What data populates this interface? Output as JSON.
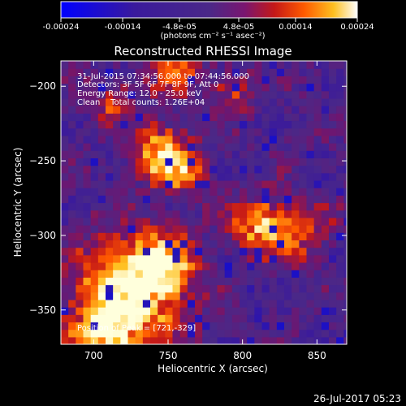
{
  "colorbar": {
    "ticks": [
      "-0.00024",
      "-0.00014",
      "-4.8e-05",
      "4.8e-05",
      "0.00014",
      "0.00024"
    ],
    "tick_values": [
      -0.00024,
      -0.00014,
      -4.8e-05,
      4.8e-05,
      0.00014,
      0.00024
    ],
    "range": [
      -0.00024,
      0.00024
    ],
    "unit_label": "(photons cm⁻² s⁻¹ asec⁻²)"
  },
  "header": {
    "title": "Reconstructed RHESSI Image"
  },
  "annotations": {
    "time_range": "31-Jul-2015 07:34:56.000 to 07:44:56.000",
    "detectors": "Detectors: 3F 5F 6F 7F 8F 9F, Att 0",
    "energy": "Energy Range: 12.0 - 25.0 keV",
    "clean": "Clean    Total counts: 1.26E+04",
    "peak": "Position of Peak = [721,-329]"
  },
  "footer": {
    "timestamp": "26-Jul-2017 05:23"
  },
  "colors": {
    "background": "#000000",
    "text": "#ffffff",
    "cmap_neg": [
      "#0000ff",
      "#3a1a9c",
      "#4a2888"
    ],
    "cmap_pos": [
      "#4a2888",
      "#7a1670",
      "#c41818",
      "#ff5a00",
      "#ffc020",
      "#ffffd0",
      "#ffffff"
    ]
  },
  "chart_data": {
    "type": "heatmap",
    "title": "Reconstructed RHESSI Image",
    "xlabel": "Heliocentric X (arcsec)",
    "ylabel": "Heliocentric Y (arcsec)",
    "xlim": [
      678,
      870
    ],
    "ylim": [
      -373,
      -183
    ],
    "x_ticks": [
      700,
      750,
      800,
      850
    ],
    "y_ticks": [
      -200,
      -250,
      -300,
      -350
    ],
    "x_tick_labels": [
      "700",
      "750",
      "800",
      "850"
    ],
    "y_tick_labels": [
      "−200",
      "−250",
      "−300",
      "−350"
    ],
    "peak": [
      721,
      -329
    ],
    "bright_sources": [
      {
        "x": 721,
        "y": -340,
        "level": 1.0,
        "width": 24
      },
      {
        "x": 742,
        "y": -322,
        "level": 0.75,
        "width": 14
      },
      {
        "x": 706,
        "y": -372,
        "level": 0.7,
        "width": 16
      },
      {
        "x": 742,
        "y": -247,
        "level": 0.8,
        "width": 12
      },
      {
        "x": 757,
        "y": -258,
        "level": 0.55,
        "width": 11
      },
      {
        "x": 808,
        "y": -295,
        "level": 0.75,
        "width": 12
      },
      {
        "x": 835,
        "y": -300,
        "level": 0.5,
        "width": 14
      },
      {
        "x": 750,
        "y": -188,
        "level": 0.6,
        "width": 12
      },
      {
        "x": 712,
        "y": -213,
        "level": 0.45,
        "width": 10
      },
      {
        "x": 790,
        "y": -205,
        "level": 0.4,
        "width": 10
      }
    ]
  }
}
